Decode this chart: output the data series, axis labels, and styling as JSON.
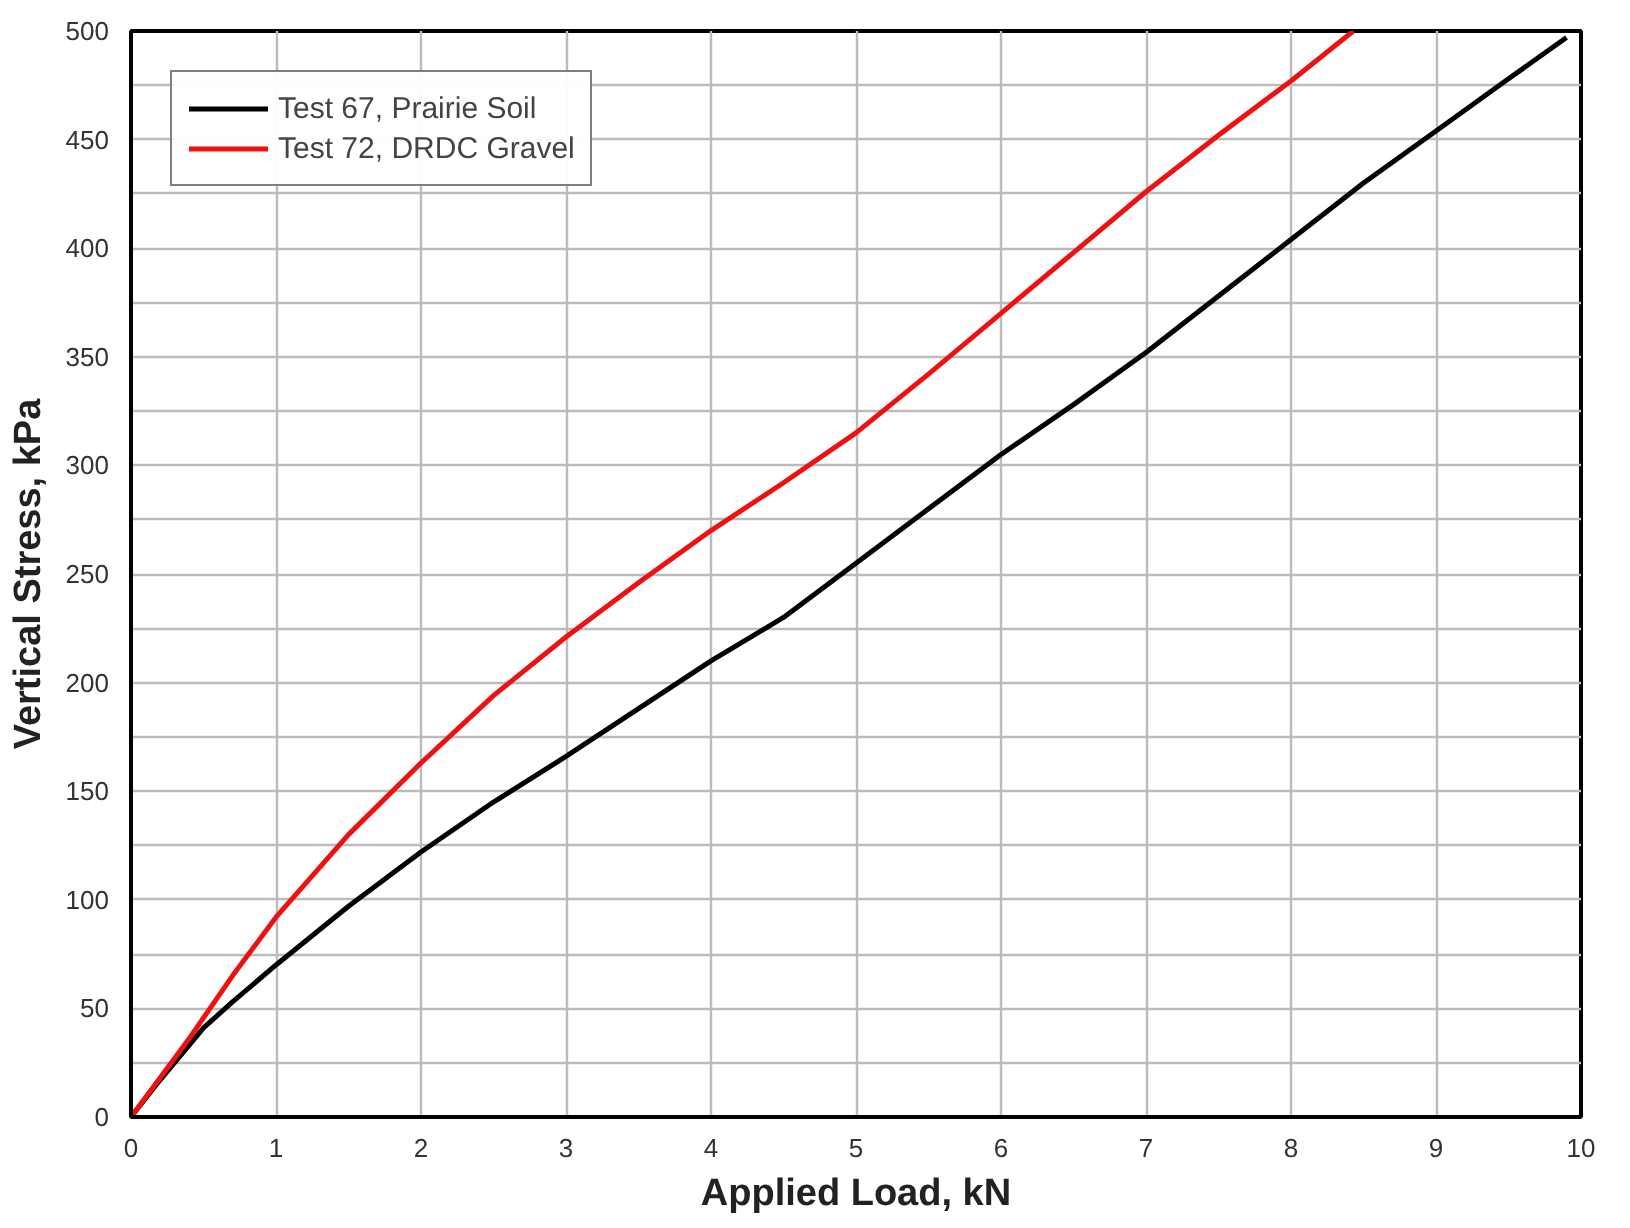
{
  "chart_data": {
    "type": "line",
    "xlabel": "Applied Load, kN",
    "ylabel": "Vertical Stress, kPa",
    "xlim": [
      0,
      10
    ],
    "xticks": [
      0,
      1,
      2,
      3,
      4,
      5,
      6,
      7,
      8,
      9,
      10
    ],
    "ylim": [
      0,
      500
    ],
    "yticks": [
      0,
      {
        "value": 25,
        "label": null
      },
      50,
      {
        "value": 75,
        "label": null
      },
      100,
      {
        "value": 125,
        "label": null
      },
      150,
      {
        "value": 175,
        "label": null
      },
      200,
      {
        "value": 225,
        "label": null
      },
      250,
      {
        "value": 275,
        "label": null
      },
      300,
      {
        "value": 325,
        "label": null
      },
      350,
      {
        "value": 375,
        "label": null
      },
      400,
      {
        "value": 425,
        "label": null
      },
      450,
      {
        "value": 475,
        "label": null
      },
      500
    ],
    "grid": true,
    "legend": "top left",
    "line_style": "solid",
    "series": [
      {
        "name": "Test 67, Prairie Soil",
        "color": "#000000",
        "x": [
          0,
          0.2,
          0.4,
          0.5,
          0.7,
          1,
          1.5,
          2,
          2.5,
          3,
          3.5,
          4,
          4.5,
          5,
          5.5,
          6,
          6.5,
          7,
          7.5,
          8,
          8.5,
          9,
          9.5,
          9.9
        ],
        "values": [
          0,
          17,
          33,
          41,
          53,
          70,
          97,
          122,
          145,
          166,
          188,
          210,
          230,
          255,
          280,
          305,
          328,
          352,
          378,
          404,
          430,
          454,
          478,
          497
        ]
      },
      {
        "name": "Test 72, DRDC Gravel",
        "color": "#ee1111",
        "x": [
          0,
          0.2,
          0.4,
          0.7,
          1,
          1.5,
          2,
          2.5,
          3,
          3.5,
          4,
          4.5,
          5,
          5.5,
          6,
          6.5,
          7,
          7.5,
          8,
          8.43
        ],
        "values": [
          0,
          18,
          36,
          65,
          92,
          130,
          163,
          194,
          221,
          246,
          270,
          292,
          315,
          342,
          370,
          398,
          426,
          452,
          477,
          500
        ]
      }
    ]
  }
}
